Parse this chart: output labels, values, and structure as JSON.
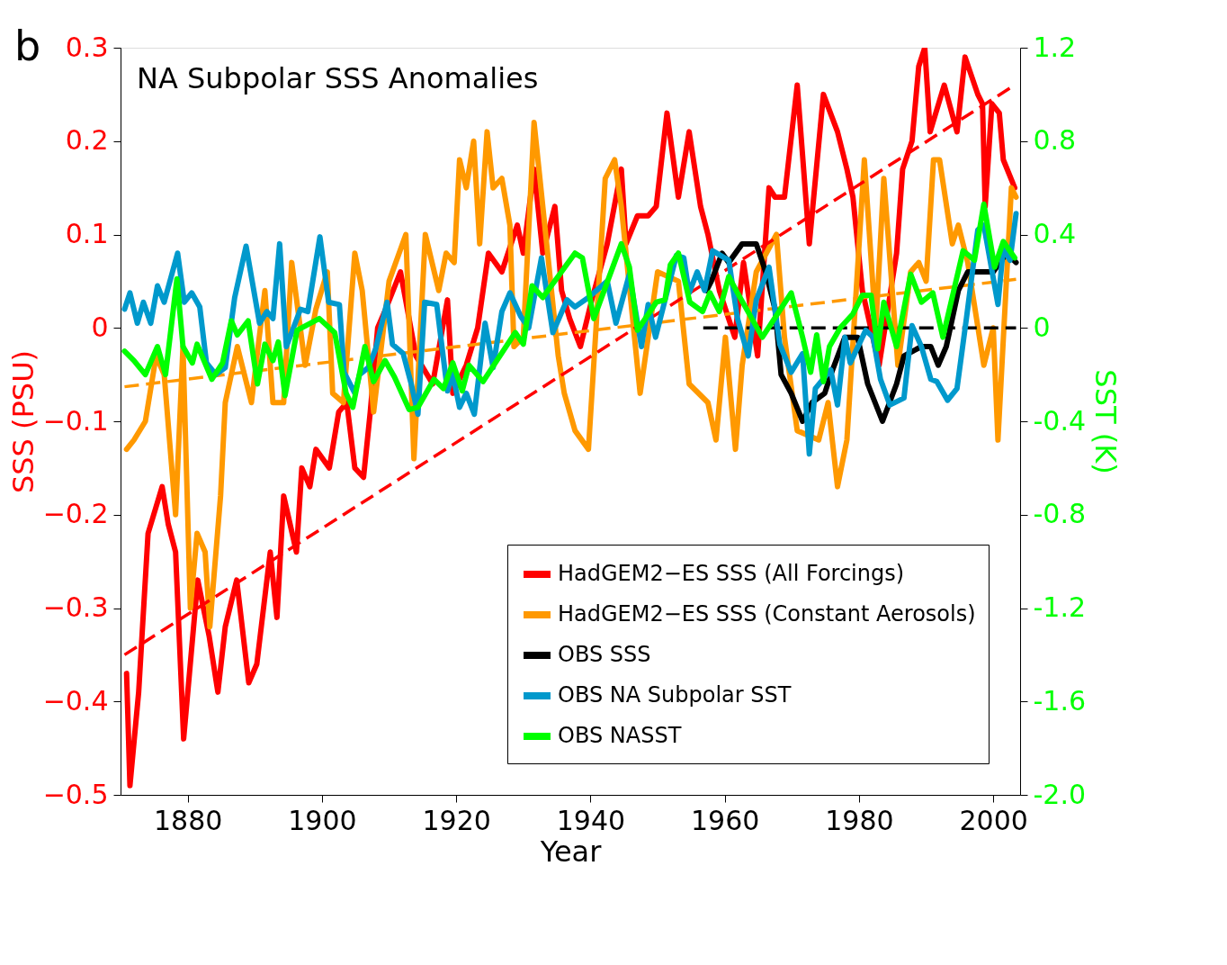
{
  "chart_data": {
    "type": "line",
    "title": "NA Subpolar SSS Anomalies",
    "xlabel": "Year",
    "ylabel": "SSS (PSU)",
    "y2label": "SST (K)",
    "annotations": [
      "b"
    ],
    "xlim": [
      1870,
      2004
    ],
    "xticks": [
      1880,
      1900,
      1920,
      1940,
      1960,
      1980,
      2000
    ],
    "ylim": [
      -0.5,
      0.3
    ],
    "yticks": [
      {
        "value": -0.5,
        "label": "−0.5"
      },
      {
        "value": -0.4,
        "label": "−0.4"
      },
      {
        "value": -0.3,
        "label": "−0.3"
      },
      {
        "value": -0.2,
        "label": "−0.2"
      },
      {
        "value": -0.1,
        "label": "−0.1"
      },
      0,
      0.1,
      0.2,
      0.3
    ],
    "y2lim": [
      -2.0,
      1.2
    ],
    "y2ticks": [
      {
        "value": -2.0,
        "label": "-2.0"
      },
      {
        "value": -1.6,
        "label": "-1.6"
      },
      {
        "value": -1.2,
        "label": "-1.2"
      },
      {
        "value": -0.8,
        "label": "-0.8"
      },
      {
        "value": -0.4,
        "label": "-0.4"
      },
      0,
      0.4,
      0.8,
      1.2
    ],
    "grid": false,
    "legend": "bottom right",
    "line_style": "solid",
    "series": [
      {
        "name": "HadGEM2−ES SSS (All Forcings)",
        "color": "#ff0000",
        "axis": "y",
        "x": [
          1870.9,
          1871.4,
          1872.7,
          1874.1,
          1876.2,
          1877.1,
          1878.2,
          1879.4,
          1881.5,
          1883.2,
          1884.5,
          1885.6,
          1887.3,
          1889.1,
          1890.3,
          1892.3,
          1893.3,
          1894.3,
          1896.2,
          1897.0,
          1898.2,
          1899.1,
          1901.1,
          1902.5,
          1903.7,
          1904.9,
          1906.2,
          1907.2,
          1908.3,
          1909.5,
          1911.7,
          1914.0,
          1916.5,
          1918.7,
          1919.5,
          1921.5,
          1923.2,
          1924.8,
          1926.8,
          1929.1,
          1930.0,
          1931.6,
          1932.9,
          1934.7,
          1935.7,
          1936.9,
          1938.5,
          1940.2,
          1942.5,
          1944.6,
          1945.3,
          1947.0,
          1948.6,
          1949.8,
          1951.4,
          1953.1,
          1954.7,
          1956.4,
          1957.5,
          1959.2,
          1961.5,
          1962.8,
          1964.9,
          1966.6,
          1967.5,
          1968.9,
          1970.8,
          1972.6,
          1974.7,
          1976.8,
          1978.2,
          1979.1,
          1980.5,
          1983.0,
          1985.6,
          1986.5,
          1987.9,
          1988.9,
          1989.8,
          1990.6,
          1992.7,
          1994.6,
          1995.8,
          1997.7,
          1998.4,
          1998.8,
          1999.8,
          2000.9,
          2001.5,
          2003.2
        ],
        "values": [
          -0.37,
          -0.49,
          -0.39,
          -0.22,
          -0.17,
          -0.21,
          -0.24,
          -0.44,
          -0.27,
          -0.33,
          -0.39,
          -0.32,
          -0.27,
          -0.38,
          -0.36,
          -0.24,
          -0.31,
          -0.18,
          -0.24,
          -0.15,
          -0.17,
          -0.13,
          -0.15,
          -0.09,
          -0.08,
          -0.15,
          -0.16,
          -0.09,
          0.0,
          0.02,
          0.06,
          -0.03,
          -0.06,
          0.03,
          -0.07,
          -0.04,
          0.0,
          0.08,
          0.06,
          0.11,
          0.08,
          0.17,
          0.08,
          0.13,
          0.04,
          0.01,
          -0.02,
          0.03,
          0.09,
          0.17,
          0.09,
          0.12,
          0.12,
          0.13,
          0.23,
          0.14,
          0.21,
          0.13,
          0.1,
          0.04,
          -0.01,
          0.07,
          -0.03,
          0.15,
          0.14,
          0.14,
          0.26,
          0.09,
          0.25,
          0.21,
          0.17,
          0.14,
          0.04,
          -0.04,
          0.08,
          0.17,
          0.2,
          0.28,
          0.3,
          0.21,
          0.26,
          0.21,
          0.29,
          0.25,
          0.24,
          0.13,
          0.24,
          0.23,
          0.18,
          0.15
        ]
      },
      {
        "name": "HadGEM2−ES SSS (Constant Aerosols)",
        "color": "#ff9900",
        "axis": "y",
        "x": [
          1870.9,
          1872.0,
          1873.7,
          1875.3,
          1876.5,
          1878.2,
          1879.3,
          1880.4,
          1881.4,
          1882.6,
          1883.3,
          1884.9,
          1885.6,
          1887.4,
          1889.5,
          1891.5,
          1892.7,
          1894.3,
          1895.5,
          1897.5,
          1899.1,
          1900.8,
          1901.6,
          1903.2,
          1904.9,
          1906.0,
          1907.7,
          1910.0,
          1912.5,
          1913.7,
          1915.4,
          1917.4,
          1918.5,
          1919.7,
          1920.5,
          1921.5,
          1922.6,
          1923.5,
          1924.6,
          1925.5,
          1926.8,
          1928.0,
          1928.6,
          1930.0,
          1931.6,
          1932.9,
          1935.2,
          1936.1,
          1937.7,
          1939.7,
          1941.7,
          1942.2,
          1943.6,
          1944.6,
          1947.4,
          1950.0,
          1953.1,
          1954.7,
          1957.5,
          1958.7,
          1960.1,
          1961.6,
          1962.6,
          1964.7,
          1967.7,
          1968.9,
          1970.8,
          1974.0,
          1975.4,
          1976.8,
          1978.2,
          1980.8,
          1982.5,
          1983.7,
          1985.8,
          1987.7,
          1988.9,
          1990.0,
          1991.1,
          1992.0,
          1993.9,
          1994.8,
          1996.2,
          1998.6,
          2000.0,
          2000.7,
          2002.7,
          2003.4
        ],
        "values": [
          -0.13,
          -0.12,
          -0.1,
          -0.03,
          -0.05,
          -0.2,
          -0.02,
          -0.3,
          -0.22,
          -0.24,
          -0.32,
          -0.18,
          -0.08,
          -0.02,
          -0.08,
          0.04,
          -0.08,
          -0.08,
          0.07,
          -0.04,
          0.02,
          0.06,
          -0.07,
          -0.08,
          0.08,
          0.04,
          -0.09,
          0.05,
          0.1,
          -0.14,
          0.1,
          0.04,
          0.08,
          0.07,
          0.18,
          0.15,
          0.2,
          0.09,
          0.21,
          0.15,
          0.16,
          0.11,
          -0.02,
          -0.01,
          0.22,
          0.13,
          -0.03,
          -0.07,
          -0.11,
          -0.13,
          0.1,
          0.16,
          0.18,
          0.13,
          -0.07,
          0.06,
          0.05,
          -0.06,
          -0.08,
          -0.12,
          -0.01,
          -0.13,
          -0.04,
          0.06,
          0.1,
          -0.01,
          -0.11,
          -0.12,
          -0.08,
          -0.17,
          -0.12,
          0.18,
          0.0,
          0.16,
          -0.04,
          0.06,
          0.07,
          0.05,
          0.18,
          0.18,
          0.09,
          0.11,
          0.07,
          -0.04,
          0.0,
          -0.12,
          0.15,
          0.14
        ]
      },
      {
        "type": "line",
        "color": "#ff0000",
        "axis": "y",
        "line_style": "dashed",
        "x": [
          1870.6,
          2003.2
        ],
        "values": [
          -0.35,
          0.26
        ]
      },
      {
        "type": "line",
        "color": "#ff9900",
        "axis": "y",
        "line_style": "dashed",
        "x": [
          1870.6,
          2003.4
        ],
        "values": [
          -0.063,
          0.052
        ]
      },
      {
        "name": "OBS SSS",
        "color": "#000000",
        "axis": "y",
        "x": [
          1957.3,
          1958.0,
          1959.6,
          1960.6,
          1962.6,
          1964.7,
          1966.1,
          1967.5,
          1968.4,
          1969.9,
          1971.6,
          1973.0,
          1974.9,
          1975.8,
          1977.9,
          1979.8,
          1981.3,
          1983.5,
          1985.6,
          1986.7,
          1989.3,
          1990.7,
          1991.8,
          1993.0,
          1994.8,
          1996.2,
          1998.6,
          2000.0,
          2002.0,
          2003.4
        ],
        "values": [
          0.04,
          0.05,
          0.08,
          0.07,
          0.09,
          0.09,
          0.06,
          0.02,
          -0.05,
          -0.07,
          -0.1,
          -0.08,
          -0.07,
          -0.05,
          -0.01,
          -0.01,
          -0.06,
          -0.1,
          -0.06,
          -0.03,
          -0.02,
          -0.02,
          -0.04,
          -0.02,
          0.04,
          0.06,
          0.06,
          0.06,
          0.08,
          0.07
        ]
      },
      {
        "name": "OBS NA Subpolar SST",
        "color": "#0099cc",
        "axis": "y2",
        "x": [
          1870.6,
          1871.4,
          1872.5,
          1873.4,
          1874.5,
          1875.5,
          1876.5,
          1878.5,
          1879.5,
          1880.6,
          1881.8,
          1882.8,
          1884.2,
          1885.6,
          1887.0,
          1888.7,
          1890.7,
          1891.8,
          1892.7,
          1893.7,
          1894.7,
          1896.8,
          1897.9,
          1899.7,
          1901.0,
          1902.6,
          1903.3,
          1904.9,
          1905.6,
          1906.9,
          1908.0,
          1909.7,
          1910.5,
          1912.1,
          1913.3,
          1914.3,
          1915.3,
          1917.1,
          1918.7,
          1919.5,
          1920.5,
          1921.5,
          1922.7,
          1924.3,
          1925.5,
          1926.8,
          1928.0,
          1929.6,
          1930.8,
          1932.7,
          1934.4,
          1936.5,
          1937.7,
          1939.7,
          1942.5,
          1943.8,
          1945.8,
          1947.6,
          1948.6,
          1949.7,
          1952.8,
          1953.9,
          1954.7,
          1955.9,
          1957.0,
          1958.2,
          1960.6,
          1961.9,
          1963.5,
          1964.7,
          1966.6,
          1968.2,
          1969.9,
          1971.6,
          1972.6,
          1973.5,
          1975.8,
          1976.8,
          1977.9,
          1978.7,
          1981.0,
          1982.1,
          1983.2,
          1984.6,
          1986.7,
          1987.9,
          1989.3,
          1990.7,
          1991.6,
          1993.2,
          1994.6,
          1996.0,
          1997.7,
          1998.6,
          2000.7,
          2001.5,
          2002.5,
          2003.4
        ],
        "values": [
          0.08,
          0.15,
          0.02,
          0.11,
          0.02,
          0.18,
          0.11,
          0.32,
          0.11,
          0.15,
          0.09,
          -0.15,
          -0.2,
          -0.17,
          0.13,
          0.35,
          0.02,
          0.07,
          0.04,
          0.36,
          -0.08,
          0.08,
          0.07,
          0.39,
          0.11,
          0.1,
          -0.19,
          -0.28,
          -0.2,
          -0.17,
          -0.09,
          0.11,
          -0.07,
          -0.11,
          -0.24,
          -0.37,
          0.11,
          0.1,
          -0.27,
          -0.2,
          -0.34,
          -0.28,
          -0.37,
          0.02,
          -0.17,
          0.07,
          0.15,
          0.05,
          0.0,
          0.3,
          -0.02,
          0.12,
          0.09,
          0.13,
          0.2,
          0.02,
          0.23,
          -0.08,
          0.1,
          -0.04,
          0.31,
          0.3,
          0.15,
          0.24,
          0.16,
          0.33,
          0.29,
          0.04,
          -0.12,
          0.12,
          0.26,
          -0.07,
          -0.19,
          -0.11,
          -0.54,
          -0.26,
          -0.18,
          -0.33,
          -0.04,
          -0.15,
          -0.01,
          -0.04,
          -0.22,
          -0.33,
          -0.3,
          0.01,
          -0.08,
          -0.22,
          -0.23,
          -0.31,
          -0.26,
          0.04,
          0.42,
          0.44,
          0.1,
          0.34,
          0.29,
          0.49
        ]
      },
      {
        "name": "OBS NASST",
        "color": "#00ff00",
        "axis": "y2",
        "x": [
          1870.6,
          1872.0,
          1873.7,
          1875.5,
          1876.7,
          1878.4,
          1879.3,
          1880.7,
          1881.4,
          1883.6,
          1885.2,
          1886.5,
          1887.4,
          1889.0,
          1890.4,
          1891.5,
          1892.7,
          1893.5,
          1894.5,
          1896.3,
          1899.6,
          1901.9,
          1903.6,
          1904.6,
          1906.4,
          1907.7,
          1909.4,
          1910.8,
          1913.0,
          1914.3,
          1916.7,
          1918.1,
          1919.5,
          1920.9,
          1921.9,
          1924.0,
          1928.8,
          1930.0,
          1931.3,
          1932.9,
          1937.7,
          1938.8,
          1940.5,
          1944.6,
          1945.8,
          1947.0,
          1949.8,
          1951.1,
          1951.9,
          1953.1,
          1954.8,
          1956.7,
          1957.8,
          1959.2,
          1960.6,
          1961.9,
          1965.6,
          1969.9,
          1971.6,
          1972.8,
          1973.7,
          1974.7,
          1975.6,
          1977.2,
          1979.1,
          1980.5,
          1981.8,
          1982.8,
          1983.7,
          1985.6,
          1987.7,
          1989.3,
          1991.0,
          1992.5,
          1995.5,
          1997.2,
          1998.6,
          2000.2,
          2001.5,
          2003.2
        ],
        "values": [
          -0.1,
          -0.14,
          -0.2,
          -0.08,
          -0.2,
          0.21,
          -0.08,
          -0.15,
          -0.07,
          -0.22,
          -0.15,
          0.03,
          -0.03,
          0.03,
          -0.24,
          -0.07,
          -0.14,
          -0.06,
          -0.29,
          -0.01,
          0.04,
          -0.02,
          -0.28,
          -0.34,
          -0.08,
          -0.23,
          -0.14,
          -0.21,
          -0.35,
          -0.34,
          -0.22,
          -0.26,
          -0.15,
          -0.27,
          -0.16,
          -0.23,
          -0.02,
          -0.07,
          0.18,
          0.13,
          0.32,
          0.3,
          0.04,
          0.36,
          0.26,
          -0.01,
          0.11,
          0.12,
          0.27,
          0.32,
          0.11,
          0.07,
          0.15,
          0.07,
          0.22,
          0.15,
          -0.04,
          0.15,
          -0.04,
          -0.19,
          -0.03,
          -0.23,
          -0.08,
          0.0,
          0.06,
          0.14,
          0.14,
          -0.09,
          0.11,
          -0.08,
          0.23,
          0.11,
          0.15,
          -0.04,
          0.33,
          0.29,
          0.53,
          0.26,
          0.37,
          0.3
        ]
      },
      {
        "type": "line",
        "color": "#000000",
        "axis": "y",
        "line_style": "dashed",
        "x": [
          1956.8,
          2003.4
        ],
        "values": [
          0.0,
          0.0
        ]
      }
    ]
  }
}
